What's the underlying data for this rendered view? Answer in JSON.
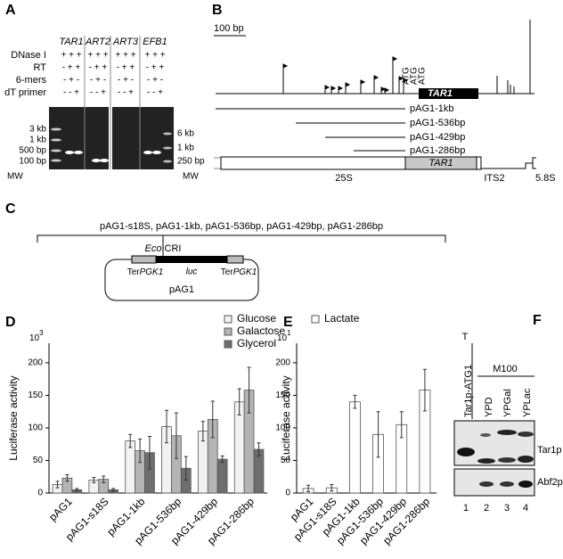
{
  "panels": {
    "a": "A",
    "b": "B",
    "c": "C",
    "d": "D",
    "e": "E",
    "f": "F"
  },
  "gel": {
    "genes": [
      "TAR1",
      "ART2",
      "ART3",
      "EFB1"
    ],
    "rows": [
      {
        "label": "DNase I",
        "signs": [
          "+ + +",
          "+ + +",
          "+ + +",
          "+ + +"
        ]
      },
      {
        "label": "RT",
        "signs": [
          "- + +",
          "- + +",
          "- + +",
          "- + +"
        ]
      },
      {
        "label": "6-mers",
        "signs": [
          "- + -",
          "- + -",
          "- + -",
          "- + -"
        ]
      },
      {
        "label": "dT primer",
        "signs": [
          "- - +",
          "- - +",
          "- - +",
          "- - +"
        ]
      }
    ],
    "left_markers": [
      "3 kb",
      "1 kb",
      "500 bp",
      "100 bp"
    ],
    "right_markers": [
      "6 kb",
      "1 kb",
      "250 bp"
    ],
    "mw": [
      "MW",
      "MW"
    ]
  },
  "map": {
    "scale": "100 bp",
    "atg": [
      "ATG",
      "ATG",
      "ATG"
    ],
    "gene": "TAR1",
    "constructs": [
      "pAG1-1kb",
      "pAG1-536bp",
      "pAG1-429bp",
      "pAG1-286bp"
    ],
    "rdna_gene": "TAR1",
    "regions": [
      "25S",
      "ITS2",
      "5.8S"
    ]
  },
  "plasmid": {
    "constructs": "pAG1-s18S, pAG1-1kb, pAG1-536bp, pAG1-429bp, pAG1-286bp",
    "site_prefix": "Eco",
    "site_suffix": "ICRI",
    "terminator": {
      "prefix": "Ter",
      "gene": "PGK1"
    },
    "reporter": "luc",
    "name": "pAG1"
  },
  "western": {
    "control_group": "T",
    "control_lane": "Tar1p-ATG1",
    "strain": "M100",
    "media": [
      "YPD",
      "YPGal",
      "YPLac"
    ],
    "proteins": [
      "Tar1p",
      "Abf2p"
    ],
    "lanes": [
      "1",
      "2",
      "3",
      "4"
    ]
  },
  "chart_data": [
    {
      "type": "bar",
      "ylabel": "Luciferase activity",
      "multiplier": {
        "base": "10",
        "exponent": "3"
      },
      "categories": [
        "pAG1",
        "pAG1-s18S",
        "pAG1-1kb",
        "pAG1-536bp",
        "pAG1-429bp",
        "pAG1-286bp"
      ],
      "series": [
        {
          "name": "Glucose",
          "color": "#f2f2f2",
          "values": [
            13,
            20,
            80,
            102,
            95,
            140
          ],
          "errors": [
            5,
            4,
            10,
            25,
            15,
            20
          ]
        },
        {
          "name": "Galactose",
          "color": "#b4b4b4",
          "values": [
            23,
            21,
            65,
            88,
            113,
            158
          ],
          "errors": [
            5,
            5,
            18,
            35,
            28,
            35
          ]
        },
        {
          "name": "Glycerol",
          "color": "#6e6e6e",
          "values": [
            5,
            5,
            62,
            38,
            52,
            67
          ],
          "errors": [
            2,
            2,
            25,
            18,
            5,
            10
          ]
        }
      ],
      "ylim": [
        0,
        230
      ],
      "yticks": [
        0,
        50,
        100,
        150,
        200
      ],
      "legend": "top"
    },
    {
      "type": "bar",
      "ylabel": "Luciferase activity",
      "multiplier": {
        "base": "10",
        "exponent": "1"
      },
      "categories": [
        "pAG1",
        "pAG1-s18S",
        "pAG1-1kb",
        "pAG1-536bp",
        "pAG1-429bp",
        "pAG1-286bp"
      ],
      "series": [
        {
          "name": "Lactate",
          "color": "#ffffff",
          "values": [
            7,
            8,
            140,
            90,
            105,
            158
          ],
          "errors": [
            5,
            5,
            10,
            35,
            20,
            32
          ]
        }
      ],
      "ylim": [
        0,
        230
      ],
      "yticks": [
        0,
        50,
        100,
        150,
        200
      ],
      "legend": "top"
    }
  ]
}
